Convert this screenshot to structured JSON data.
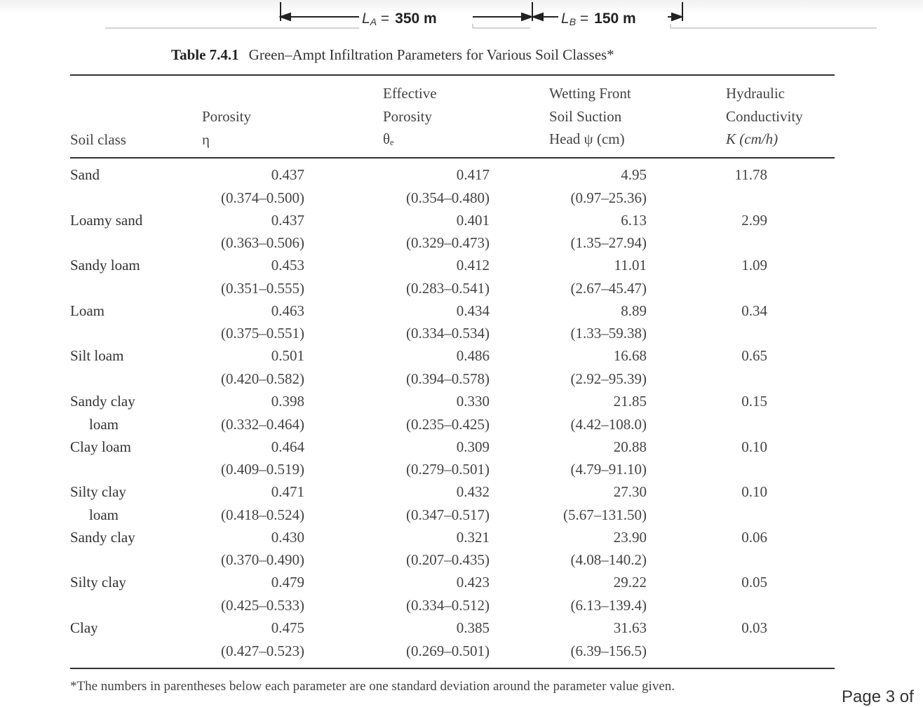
{
  "figure": {
    "la_label": "L",
    "la_sub": "A",
    "la_eq": "=",
    "la_value": "350 m",
    "lb_label": "L",
    "lb_sub": "B",
    "lb_eq": "=",
    "lb_value": "150 m"
  },
  "caption": {
    "number": "Table 7.4.1",
    "title": "Green–Ampt Infiltration Parameters for Various Soil Classes*"
  },
  "headers": {
    "soil_class": "Soil class",
    "porosity": [
      "Porosity",
      "η"
    ],
    "effective_porosity": [
      "Effective",
      "Porosity",
      "θₑ"
    ],
    "suction": [
      "Wetting Front",
      "Soil Suction",
      "Head ψ (cm)"
    ],
    "conductivity": [
      "Hydraulic",
      "Conductivity",
      "K (cm/h)"
    ]
  },
  "rows": [
    {
      "name": [
        "Sand"
      ],
      "porosity": "0.437",
      "porosity_range": "(0.374–0.500)",
      "eff": "0.417",
      "eff_range": "(0.354–0.480)",
      "suction": "4.95",
      "suction_range": "(0.97–25.36)",
      "k": "11.78"
    },
    {
      "name": [
        "Loamy sand"
      ],
      "porosity": "0.437",
      "porosity_range": "(0.363–0.506)",
      "eff": "0.401",
      "eff_range": "(0.329–0.473)",
      "suction": "6.13",
      "suction_range": "(1.35–27.94)",
      "k": "2.99"
    },
    {
      "name": [
        "Sandy loam"
      ],
      "porosity": "0.453",
      "porosity_range": "(0.351–0.555)",
      "eff": "0.412",
      "eff_range": "(0.283–0.541)",
      "suction": "11.01",
      "suction_range": "(2.67–45.47)",
      "k": "1.09"
    },
    {
      "name": [
        "Loam"
      ],
      "porosity": "0.463",
      "porosity_range": "(0.375–0.551)",
      "eff": "0.434",
      "eff_range": "(0.334–0.534)",
      "suction": "8.89",
      "suction_range": "(1.33–59.38)",
      "k": "0.34"
    },
    {
      "name": [
        "Silt loam"
      ],
      "porosity": "0.501",
      "porosity_range": "(0.420–0.582)",
      "eff": "0.486",
      "eff_range": "(0.394–0.578)",
      "suction": "16.68",
      "suction_range": "(2.92–95.39)",
      "k": "0.65"
    },
    {
      "name": [
        "Sandy clay",
        "loam"
      ],
      "porosity": "0.398",
      "porosity_range": "(0.332–0.464)",
      "eff": "0.330",
      "eff_range": "(0.235–0.425)",
      "suction": "21.85",
      "suction_range": "(4.42–108.0)",
      "k": "0.15"
    },
    {
      "name": [
        "Clay loam"
      ],
      "porosity": "0.464",
      "porosity_range": "(0.409–0.519)",
      "eff": "0.309",
      "eff_range": "(0.279–0.501)",
      "suction": "20.88",
      "suction_range": "(4.79–91.10)",
      "k": "0.10"
    },
    {
      "name": [
        "Silty clay",
        "loam"
      ],
      "porosity": "0.471",
      "porosity_range": "(0.418–0.524)",
      "eff": "0.432",
      "eff_range": "(0.347–0.517)",
      "suction": "27.30",
      "suction_range": "(5.67–131.50)",
      "k": "0.10"
    },
    {
      "name": [
        "Sandy clay"
      ],
      "porosity": "0.430",
      "porosity_range": "(0.370–0.490)",
      "eff": "0.321",
      "eff_range": "(0.207–0.435)",
      "suction": "23.90",
      "suction_range": "(4.08–140.2)",
      "k": "0.06"
    },
    {
      "name": [
        "Silty clay"
      ],
      "porosity": "0.479",
      "porosity_range": "(0.425–0.533)",
      "eff": "0.423",
      "eff_range": "(0.334–0.512)",
      "suction": "29.22",
      "suction_range": "(6.13–139.4)",
      "k": "0.05"
    },
    {
      "name": [
        "Clay"
      ],
      "porosity": "0.475",
      "porosity_range": "(0.427–0.523)",
      "eff": "0.385",
      "eff_range": "(0.269–0.501)",
      "suction": "31.63",
      "suction_range": "(6.39–156.5)",
      "k": "0.03"
    }
  ],
  "footnote": "*The numbers in parentheses below each parameter are one standard deviation around the parameter value given.",
  "page_label": "Page 3 of"
}
